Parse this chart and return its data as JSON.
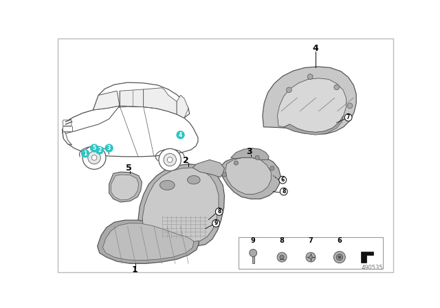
{
  "bg": "#ffffff",
  "border": "#cccccc",
  "teal": "#2ec4c4",
  "gray_dark": "#888888",
  "gray_mid": "#aaaaaa",
  "gray_light": "#cccccc",
  "car_line": "#555555",
  "part_edge": "#555555",
  "part_face": "#b8b8b8",
  "part_face2": "#d0d0d0",
  "part_number": "490535",
  "fw": 6.4,
  "fh": 4.48,
  "dpi": 100
}
